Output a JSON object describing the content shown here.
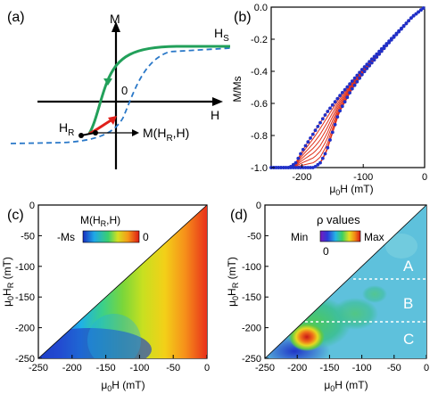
{
  "panel_a": {
    "label": "(a)",
    "y_axis_label": "M",
    "x_axis_label": "H",
    "origin_label": "0",
    "saturation_label": "H",
    "saturation_sub": "S",
    "reversal_label": "H",
    "reversal_sub": "R",
    "frc_label_prefix": "M(H",
    "frc_label_sub": "R",
    "frc_label_suffix": ",H)",
    "colors": {
      "major_loop": "#22a05a",
      "dashed_loop": "#2a78c8",
      "frc": "#e0201a"
    }
  },
  "panel_b": {
    "label": "(b)",
    "y_axis_label": "M/Ms",
    "x_axis_label_prefix": "μ",
    "x_axis_label_sub": "0",
    "x_axis_label_suffix": "H (mT)",
    "y_ticks": [
      "0.0",
      "-0.2",
      "-0.4",
      "-0.6",
      "-0.8",
      "-1.0"
    ],
    "x_ticks": [
      "-200",
      "-100",
      "0"
    ],
    "colors": {
      "dots": "#2030c8",
      "curves": "#e0301a"
    }
  },
  "panel_c": {
    "label": "(c)",
    "colorbar_title_prefix": "M(H",
    "colorbar_title_sub": "R",
    "colorbar_title_suffix": ",H)",
    "colorbar_min": "-Ms",
    "colorbar_max": "0",
    "y_axis_label": "μ0HR (mT)",
    "x_axis_label": "μ0H (mT)",
    "y_ticks": [
      "0",
      "-50",
      "-100",
      "-150",
      "-200",
      "-250"
    ],
    "x_ticks": [
      "-250",
      "-200",
      "-150",
      "-100",
      "-50",
      "0"
    ]
  },
  "panel_d": {
    "label": "(d)",
    "colorbar_title": "ρ values",
    "colorbar_min": "Min",
    "colorbar_max": "Max",
    "colorbar_zero": "0",
    "region_labels": [
      "A",
      "B",
      "C"
    ],
    "y_axis_label": "μ0HR (mT)",
    "x_axis_label": "μ0H (mT)",
    "y_ticks": [
      "0",
      "-50",
      "-100",
      "-150",
      "-200",
      "-250"
    ],
    "x_ticks": [
      "-250",
      "-200",
      "-150",
      "-100",
      "-50",
      "0"
    ]
  },
  "chart_data": [
    {
      "type": "line",
      "panel": "b",
      "xlabel": "μ0H (mT)",
      "ylabel": "M/Ms",
      "xlim": [
        -250,
        0
      ],
      "ylim": [
        -1.0,
        0.0
      ],
      "series": [
        {
          "x": [
            -250,
            -220,
            -210,
            -200,
            -180,
            -160,
            -140,
            -120,
            -100,
            -60,
            -20,
            0
          ],
          "values": [
            -1.0,
            -1.0,
            -0.97,
            -0.9,
            -0.78,
            -0.66,
            -0.56,
            -0.47,
            -0.38,
            -0.22,
            -0.06,
            0.0
          ]
        },
        {
          "x": [
            -250,
            -180,
            -170,
            -160,
            -150,
            -140,
            -120,
            -100,
            -60,
            -20,
            0
          ],
          "values": [
            -1.0,
            -1.0,
            -0.97,
            -0.9,
            -0.78,
            -0.66,
            -0.52,
            -0.41,
            -0.23,
            -0.06,
            0.0
          ]
        }
      ]
    },
    {
      "type": "heatmap",
      "panel": "c",
      "xlabel": "μ0H (mT)",
      "ylabel": "μ0HR (mT)",
      "xlim": [
        -250,
        0
      ],
      "ylim": [
        -250,
        0
      ]
    },
    {
      "type": "heatmap",
      "panel": "d",
      "xlabel": "μ0H (mT)",
      "ylabel": "μ0HR (mT)",
      "xlim": [
        -250,
        0
      ],
      "ylim": [
        -250,
        0
      ]
    }
  ]
}
